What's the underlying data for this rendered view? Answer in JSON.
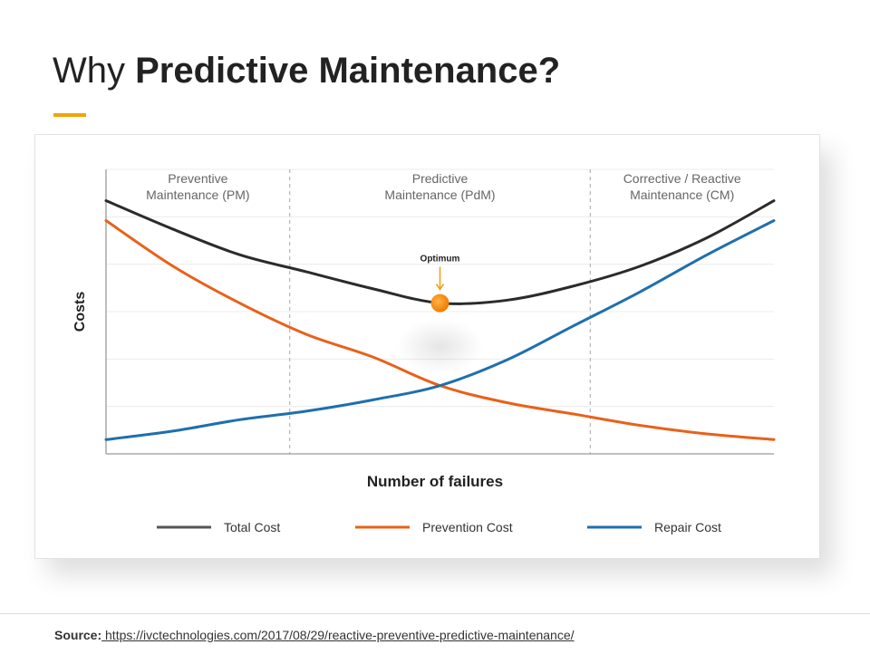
{
  "header": {
    "title_light": "Why ",
    "title_bold": "Predictive Maintenance?",
    "accent_color": "#f0a500"
  },
  "chart_data": {
    "type": "line",
    "title": "",
    "xlabel": "Number of failures",
    "ylabel": "Costs",
    "xlim": [
      0,
      10
    ],
    "ylim": [
      0,
      10
    ],
    "grid": true,
    "regions": [
      {
        "line1": "Preventive",
        "line2": "Maintenance (PM)",
        "from": 0,
        "to": 2.75
      },
      {
        "line1": "Predictive",
        "line2": "Maintenance (PdM)",
        "from": 2.75,
        "to": 7.25
      },
      {
        "line1": "Corrective / Reactive",
        "line2": "Maintenance (CM)",
        "from": 7.25,
        "to": 10
      }
    ],
    "x": [
      0,
      1,
      2,
      3,
      4,
      5,
      6,
      7,
      8,
      9,
      10
    ],
    "series": [
      {
        "name": "Total Cost",
        "color": "#2b2b2b",
        "values": [
          8.9,
          7.9,
          7.0,
          6.4,
          5.8,
          5.3,
          5.4,
          5.9,
          6.6,
          7.6,
          8.9
        ]
      },
      {
        "name": "Prevention Cost",
        "color": "#e8611a",
        "values": [
          8.2,
          6.6,
          5.3,
          4.2,
          3.4,
          2.4,
          1.8,
          1.4,
          1.0,
          0.7,
          0.5
        ]
      },
      {
        "name": "Repair Cost",
        "color": "#1f6fad",
        "values": [
          0.5,
          0.8,
          1.2,
          1.5,
          1.9,
          2.4,
          3.3,
          4.5,
          5.7,
          7.0,
          8.2
        ]
      }
    ],
    "annotations": [
      {
        "label": "Optimum",
        "x": 5,
        "y": 5.3,
        "color": "#f39c12"
      }
    ]
  },
  "legend": [
    {
      "label": "Total Cost",
      "color": "#555555"
    },
    {
      "label": "Prevention Cost",
      "color": "#e8611a"
    },
    {
      "label": "Repair Cost",
      "color": "#1f6fad"
    }
  ],
  "footer": {
    "source_label": "Source:",
    "source_url": " https://ivctechnologies.com/2017/08/29/reactive-preventive-predictive-maintenance/"
  }
}
